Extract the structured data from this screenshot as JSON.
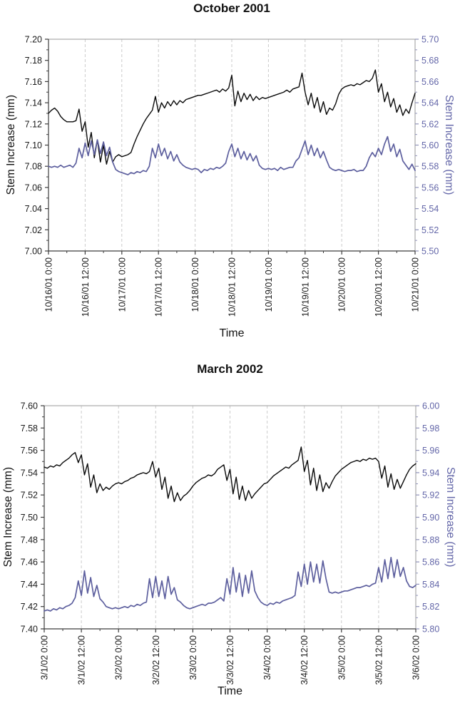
{
  "page_title": "Stem increase time series, October 2001 and March 2002",
  "colors": {
    "series_black": "#0a0a0a",
    "series_purple": "#5d5f9e",
    "right_axis_text": "#6366a8",
    "right_axis_tick": "#8f92b8",
    "grid": "#cbcbcb",
    "plot_border": "#9a9a9a",
    "axis_dark": "#3c3c3c"
  },
  "chart_data": [
    {
      "type": "line",
      "title": "October 2001",
      "xlabel": "Time",
      "ylabel_left": "Stem Increase (mm)",
      "ylabel_right": "Stem Increase (mm)",
      "grid": "vertical-dashed",
      "legend": "none",
      "x_hours": {
        "start": 0,
        "end": 120,
        "step": 1,
        "major_tick_h": 12,
        "minor_tick_h": 6
      },
      "x_tick_labels": [
        "10/16/01 0:00",
        "10/16/01 12:00",
        "10/17/01 0:00",
        "10/17/01 12:00",
        "10/18/01 0:00",
        "10/18/01 12:00",
        "10/19/01 0:00",
        "10/19/01 12:00",
        "10/20/01 0:00",
        "10/20/01 12:00",
        "10/21/01 0:00"
      ],
      "y_left": {
        "min": 7.0,
        "max": 7.2,
        "major": 0.02,
        "minor": 0.01,
        "labels": [
          "7.20",
          "7.18",
          "7.16",
          "7.14",
          "7.12",
          "7.10",
          "7.08",
          "7.06",
          "7.04",
          "7.02",
          "7.00"
        ]
      },
      "y_right": {
        "min": 5.5,
        "max": 5.7,
        "major": 0.02,
        "minor": 0.01,
        "labels": [
          "5.70",
          "5.68",
          "5.66",
          "5.64",
          "5.62",
          "5.60",
          "5.58",
          "5.56",
          "5.54",
          "5.52",
          "5.50"
        ]
      },
      "series": [
        {
          "name": "stem-increase-left-axis",
          "axis": "left",
          "color_key": "series_black",
          "width": 1.4,
          "values": [
            7.13,
            7.133,
            7.135,
            7.132,
            7.127,
            7.124,
            7.122,
            7.122,
            7.122,
            7.123,
            7.134,
            7.113,
            7.122,
            7.098,
            7.112,
            7.088,
            7.105,
            7.084,
            7.1,
            7.082,
            7.094,
            7.084,
            7.089,
            7.091,
            7.089,
            7.09,
            7.091,
            7.093,
            7.101,
            7.108,
            7.114,
            7.12,
            7.125,
            7.129,
            7.133,
            7.146,
            7.131,
            7.14,
            7.135,
            7.141,
            7.137,
            7.142,
            7.138,
            7.142,
            7.14,
            7.143,
            7.144,
            7.145,
            7.146,
            7.147,
            7.147,
            7.148,
            7.149,
            7.15,
            7.151,
            7.152,
            7.15,
            7.153,
            7.151,
            7.154,
            7.166,
            7.137,
            7.151,
            7.141,
            7.149,
            7.143,
            7.148,
            7.142,
            7.146,
            7.143,
            7.145,
            7.144,
            7.145,
            7.146,
            7.147,
            7.148,
            7.149,
            7.15,
            7.152,
            7.15,
            7.153,
            7.154,
            7.155,
            7.168,
            7.15,
            7.138,
            7.149,
            7.135,
            7.145,
            7.131,
            7.141,
            7.129,
            7.135,
            7.133,
            7.139,
            7.148,
            7.153,
            7.155,
            7.156,
            7.157,
            7.156,
            7.158,
            7.157,
            7.159,
            7.161,
            7.16,
            7.163,
            7.171,
            7.15,
            7.158,
            7.141,
            7.15,
            7.136,
            7.144,
            7.131,
            7.138,
            7.128,
            7.134,
            7.13,
            7.14,
            7.149
          ]
        },
        {
          "name": "stem-increase-right-axis",
          "axis": "right",
          "color_key": "series_purple",
          "width": 1.7,
          "values": [
            5.58,
            5.579,
            5.58,
            5.579,
            5.581,
            5.579,
            5.58,
            5.581,
            5.579,
            5.583,
            5.597,
            5.588,
            5.602,
            5.59,
            5.604,
            5.591,
            5.605,
            5.592,
            5.603,
            5.59,
            5.598,
            5.584,
            5.577,
            5.575,
            5.574,
            5.573,
            5.572,
            5.574,
            5.573,
            5.575,
            5.574,
            5.576,
            5.575,
            5.58,
            5.597,
            5.588,
            5.601,
            5.59,
            5.597,
            5.587,
            5.594,
            5.585,
            5.591,
            5.584,
            5.581,
            5.579,
            5.578,
            5.577,
            5.578,
            5.577,
            5.574,
            5.577,
            5.576,
            5.578,
            5.577,
            5.579,
            5.578,
            5.58,
            5.583,
            5.594,
            5.601,
            5.589,
            5.597,
            5.587,
            5.594,
            5.586,
            5.592,
            5.585,
            5.59,
            5.581,
            5.578,
            5.577,
            5.578,
            5.577,
            5.578,
            5.576,
            5.579,
            5.577,
            5.578,
            5.579,
            5.579,
            5.585,
            5.588,
            5.596,
            5.604,
            5.591,
            5.6,
            5.59,
            5.597,
            5.588,
            5.594,
            5.586,
            5.579,
            5.577,
            5.576,
            5.577,
            5.576,
            5.575,
            5.576,
            5.576,
            5.577,
            5.575,
            5.576,
            5.576,
            5.58,
            5.588,
            5.593,
            5.589,
            5.597,
            5.591,
            5.601,
            5.608,
            5.594,
            5.601,
            5.589,
            5.596,
            5.585,
            5.581,
            5.577,
            5.582,
            5.576
          ]
        }
      ]
    },
    {
      "type": "line",
      "title": "March 2002",
      "xlabel": "Time",
      "ylabel_left": "Stem Increase (mm)",
      "ylabel_right": "Stem Increase (mm)",
      "grid": "vertical-dashed",
      "legend": "none",
      "x_hours": {
        "start": 0,
        "end": 120,
        "step": 1,
        "major_tick_h": 12,
        "minor_tick_h": 6
      },
      "x_tick_labels": [
        "3/1/02 0:00",
        "3/1/02 12:00",
        "3/2/02 0:00",
        "3/2/02 12:00",
        "3/3/02 0:00",
        "3/3/02 12:00",
        "3/4/02 0:00",
        "3/4/02 12:00",
        "3/5/02 0:00",
        "3/5/02 12:00",
        "3/6/02 0:00"
      ],
      "y_left": {
        "min": 7.4,
        "max": 7.6,
        "major": 0.02,
        "minor": 0.01,
        "labels": [
          "7.60",
          "7.58",
          "7.56",
          "7.54",
          "7.52",
          "7.50",
          "7.48",
          "7.46",
          "7.44",
          "7.42",
          "7.40"
        ]
      },
      "y_right": {
        "min": 5.8,
        "max": 6.0,
        "major": 0.02,
        "minor": 0.01,
        "labels": [
          "6.00",
          "5.98",
          "5.96",
          "5.94",
          "5.92",
          "5.90",
          "5.88",
          "5.86",
          "5.84",
          "5.82",
          "5.80"
        ]
      },
      "series": [
        {
          "name": "stem-increase-left-axis",
          "axis": "left",
          "color_key": "series_black",
          "width": 1.4,
          "values": [
            7.545,
            7.544,
            7.546,
            7.545,
            7.547,
            7.546,
            7.549,
            7.551,
            7.553,
            7.556,
            7.558,
            7.549,
            7.556,
            7.538,
            7.548,
            7.527,
            7.538,
            7.522,
            7.53,
            7.524,
            7.527,
            7.525,
            7.528,
            7.53,
            7.531,
            7.53,
            7.532,
            7.533,
            7.535,
            7.536,
            7.538,
            7.539,
            7.54,
            7.539,
            7.541,
            7.55,
            7.536,
            7.544,
            7.525,
            7.536,
            7.517,
            7.528,
            7.514,
            7.522,
            7.515,
            7.519,
            7.521,
            7.524,
            7.528,
            7.531,
            7.533,
            7.535,
            7.536,
            7.538,
            7.537,
            7.539,
            7.543,
            7.545,
            7.547,
            7.533,
            7.543,
            7.521,
            7.536,
            7.516,
            7.528,
            7.515,
            7.524,
            7.517,
            7.521,
            7.524,
            7.527,
            7.53,
            7.531,
            7.534,
            7.537,
            7.539,
            7.541,
            7.543,
            7.545,
            7.544,
            7.547,
            7.549,
            7.551,
            7.563,
            7.541,
            7.551,
            7.529,
            7.544,
            7.524,
            7.538,
            7.523,
            7.531,
            7.526,
            7.532,
            7.537,
            7.54,
            7.543,
            7.545,
            7.547,
            7.549,
            7.55,
            7.551,
            7.55,
            7.552,
            7.551,
            7.553,
            7.552,
            7.553,
            7.55,
            7.535,
            7.546,
            7.527,
            7.539,
            7.525,
            7.534,
            7.526,
            7.532,
            7.538,
            7.543,
            7.546,
            7.548
          ]
        },
        {
          "name": "stem-increase-right-axis",
          "axis": "right",
          "color_key": "series_purple",
          "width": 1.7,
          "values": [
            5.816,
            5.817,
            5.816,
            5.818,
            5.817,
            5.819,
            5.818,
            5.82,
            5.821,
            5.823,
            5.828,
            5.843,
            5.83,
            5.852,
            5.832,
            5.846,
            5.829,
            5.839,
            5.827,
            5.824,
            5.82,
            5.819,
            5.818,
            5.819,
            5.818,
            5.819,
            5.82,
            5.819,
            5.821,
            5.82,
            5.822,
            5.821,
            5.823,
            5.824,
            5.845,
            5.828,
            5.847,
            5.829,
            5.843,
            5.827,
            5.847,
            5.831,
            5.837,
            5.826,
            5.824,
            5.821,
            5.819,
            5.818,
            5.819,
            5.82,
            5.821,
            5.822,
            5.821,
            5.823,
            5.823,
            5.824,
            5.826,
            5.828,
            5.825,
            5.845,
            5.831,
            5.855,
            5.833,
            5.85,
            5.829,
            5.848,
            5.832,
            5.852,
            5.834,
            5.828,
            5.824,
            5.822,
            5.821,
            5.823,
            5.822,
            5.824,
            5.823,
            5.825,
            5.826,
            5.827,
            5.828,
            5.83,
            5.851,
            5.838,
            5.858,
            5.84,
            5.86,
            5.842,
            5.858,
            5.841,
            5.861,
            5.845,
            5.833,
            5.832,
            5.833,
            5.832,
            5.833,
            5.834,
            5.834,
            5.835,
            5.836,
            5.837,
            5.837,
            5.838,
            5.839,
            5.838,
            5.84,
            5.841,
            5.855,
            5.842,
            5.862,
            5.845,
            5.864,
            5.846,
            5.862,
            5.847,
            5.855,
            5.843,
            5.838,
            5.837,
            5.839
          ]
        }
      ]
    }
  ]
}
